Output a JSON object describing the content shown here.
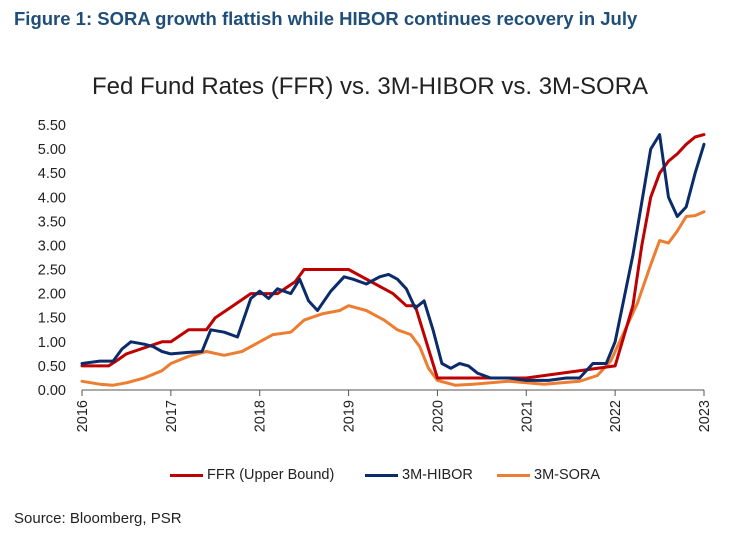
{
  "figure_title": "Figure 1: SORA growth flattish while HIBOR continues recovery in July",
  "source": "Source: Bloomberg, PSR",
  "chart_data": {
    "type": "line",
    "title": "Fed Fund Rates (FFR) vs. 3M-HIBOR vs. 3M-SORA",
    "xlabel": "",
    "ylabel": "",
    "xlim": [
      2016.0,
      2023.0
    ],
    "ylim": [
      0,
      5.5
    ],
    "y_ticks": [
      "0.00",
      "0.50",
      "1.00",
      "1.50",
      "2.00",
      "2.50",
      "3.00",
      "3.50",
      "4.00",
      "4.50",
      "5.00",
      "5.50"
    ],
    "x_ticks": [
      "2016",
      "2017",
      "2018",
      "2019",
      "2020",
      "2021",
      "2022",
      "2023"
    ],
    "grid": false,
    "legend_position": "bottom",
    "series": [
      {
        "name": "FFR (Upper Bound)",
        "color": "#c00000",
        "x": [
          2016.0,
          2016.3,
          2016.4,
          2016.5,
          2016.9,
          2017.0,
          2017.2,
          2017.4,
          2017.5,
          2017.7,
          2017.9,
          2018.2,
          2018.4,
          2018.5,
          2018.75,
          2019.0,
          2019.5,
          2019.65,
          2019.75,
          2020.0,
          2020.25,
          2021.0,
          2022.0,
          2022.2,
          2022.3,
          2022.4,
          2022.5,
          2022.6,
          2022.7,
          2022.8,
          2022.9,
          2023.0
        ],
        "y": [
          0.5,
          0.5,
          0.62,
          0.75,
          1.0,
          1.0,
          1.25,
          1.25,
          1.5,
          1.75,
          2.0,
          2.0,
          2.25,
          2.5,
          2.5,
          2.5,
          2.0,
          1.75,
          1.75,
          0.25,
          0.25,
          0.25,
          0.5,
          1.75,
          3.0,
          4.0,
          4.5,
          4.75,
          4.9,
          5.1,
          5.25,
          5.3
        ]
      },
      {
        "name": "3M-HIBOR",
        "color": "#0b2b6b",
        "x": [
          2016.0,
          2016.2,
          2016.35,
          2016.45,
          2016.55,
          2016.7,
          2016.8,
          2016.9,
          2017.0,
          2017.2,
          2017.35,
          2017.45,
          2017.6,
          2017.75,
          2017.9,
          2018.0,
          2018.1,
          2018.2,
          2018.35,
          2018.45,
          2018.55,
          2018.65,
          2018.8,
          2018.95,
          2019.05,
          2019.2,
          2019.35,
          2019.45,
          2019.55,
          2019.65,
          2019.75,
          2019.85,
          2019.95,
          2020.05,
          2020.15,
          2020.25,
          2020.35,
          2020.45,
          2020.6,
          2020.8,
          2021.0,
          2021.25,
          2021.45,
          2021.6,
          2021.75,
          2021.9,
          2022.0,
          2022.1,
          2022.2,
          2022.3,
          2022.4,
          2022.5,
          2022.6,
          2022.7,
          2022.8,
          2022.9,
          2023.0
        ],
        "y": [
          0.55,
          0.6,
          0.6,
          0.85,
          1.0,
          0.95,
          0.9,
          0.8,
          0.75,
          0.78,
          0.8,
          1.25,
          1.2,
          1.1,
          1.9,
          2.05,
          1.9,
          2.1,
          2.0,
          2.3,
          1.85,
          1.65,
          2.05,
          2.35,
          2.3,
          2.2,
          2.35,
          2.4,
          2.3,
          2.1,
          1.7,
          1.85,
          1.25,
          0.55,
          0.45,
          0.55,
          0.5,
          0.35,
          0.25,
          0.25,
          0.2,
          0.2,
          0.25,
          0.25,
          0.55,
          0.55,
          1.0,
          1.9,
          2.8,
          3.9,
          5.0,
          5.3,
          4.0,
          3.6,
          3.8,
          4.5,
          5.1
        ]
      },
      {
        "name": "3M-SORA",
        "color": "#ed7d31",
        "x": [
          2016.0,
          2016.2,
          2016.35,
          2016.5,
          2016.7,
          2016.9,
          2017.0,
          2017.2,
          2017.4,
          2017.6,
          2017.8,
          2018.0,
          2018.15,
          2018.35,
          2018.5,
          2018.7,
          2018.9,
          2019.0,
          2019.2,
          2019.4,
          2019.55,
          2019.7,
          2019.8,
          2019.9,
          2020.0,
          2020.2,
          2020.4,
          2020.6,
          2020.8,
          2021.0,
          2021.2,
          2021.4,
          2021.6,
          2021.8,
          2021.95,
          2022.1,
          2022.25,
          2022.4,
          2022.5,
          2022.6,
          2022.7,
          2022.8,
          2022.9,
          2023.0
        ],
        "y": [
          0.18,
          0.12,
          0.1,
          0.15,
          0.25,
          0.4,
          0.55,
          0.7,
          0.8,
          0.72,
          0.8,
          1.0,
          1.15,
          1.2,
          1.45,
          1.58,
          1.65,
          1.75,
          1.65,
          1.45,
          1.25,
          1.15,
          0.9,
          0.45,
          0.2,
          0.1,
          0.12,
          0.15,
          0.18,
          0.15,
          0.12,
          0.15,
          0.18,
          0.3,
          0.6,
          1.2,
          1.8,
          2.6,
          3.1,
          3.05,
          3.3,
          3.6,
          3.62,
          3.7
        ]
      }
    ]
  }
}
